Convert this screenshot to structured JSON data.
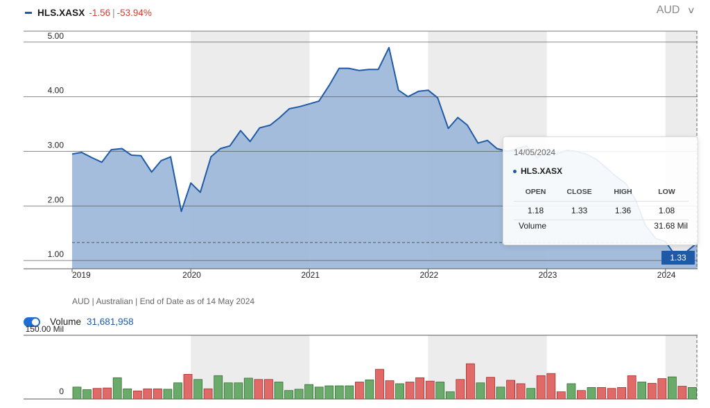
{
  "header": {
    "ticker": "HLS.XASX",
    "change": "-1.56",
    "separator": "|",
    "change_pct": "-53.94%",
    "currency": "AUD",
    "currency_chevron": "∨"
  },
  "footnote": "AUD | Australian | End of Date as of 14 May 2024",
  "volume_toggle": {
    "label": "Volume",
    "value": "31,681,958",
    "on": true
  },
  "tooltip": {
    "date": "14/05/2024",
    "ticker": "HLS.XASX",
    "headers": [
      "OPEN",
      "CLOSE",
      "HIGH",
      "LOW"
    ],
    "values": [
      "1.18",
      "1.33",
      "1.36",
      "1.08"
    ],
    "volume_label": "Volume",
    "volume_value": "31.68 Mil"
  },
  "price_flag": "1.33",
  "colors": {
    "line": "#1f5aa6",
    "area": "#9fb9da",
    "band": "#ececec",
    "up_bar": "#6aaa6a",
    "down_bar": "#e06a68"
  },
  "chart_data": [
    {
      "type": "area",
      "x_ticks": [
        "2019",
        "2020",
        "2021",
        "2022",
        "2023",
        "2024"
      ],
      "x_tick_values": [
        2019.0,
        2020.0,
        2021.0,
        2022.0,
        2023.0,
        2024.0
      ],
      "xlim": [
        2019.0,
        2024.27
      ],
      "y_ticks": [
        "1.00",
        "2.00",
        "3.00",
        "4.00",
        "5.00"
      ],
      "y_tick_values": [
        1.0,
        2.0,
        3.0,
        4.0,
        5.0
      ],
      "ylim": [
        0.85,
        5.2
      ],
      "reference_line": 1.33,
      "grid": true,
      "series": [
        {
          "x": [
            2019.0,
            2019.08,
            2019.17,
            2019.25,
            2019.33,
            2019.42,
            2019.5,
            2019.58,
            2019.67,
            2019.75,
            2019.83,
            2019.92,
            2020.0,
            2020.08,
            2020.17,
            2020.25,
            2020.33,
            2020.42,
            2020.5,
            2020.58,
            2020.67,
            2020.75,
            2020.83,
            2020.92,
            2021.0,
            2021.08,
            2021.17,
            2021.25,
            2021.33,
            2021.42,
            2021.5,
            2021.58,
            2021.67,
            2021.75,
            2021.83,
            2021.92,
            2022.0,
            2022.08,
            2022.17,
            2022.25,
            2022.33,
            2022.42,
            2022.5,
            2022.58,
            2022.67,
            2022.75,
            2022.83,
            2022.92,
            2023.0,
            2023.08,
            2023.17,
            2023.25,
            2023.33,
            2023.42,
            2023.5,
            2023.58,
            2023.67,
            2023.75,
            2023.83,
            2023.92,
            2024.0,
            2024.08,
            2024.17,
            2024.27
          ],
          "values": [
            2.95,
            2.98,
            2.88,
            2.8,
            3.03,
            3.05,
            2.93,
            2.92,
            2.62,
            2.83,
            2.9,
            1.9,
            2.42,
            2.25,
            2.9,
            3.05,
            3.1,
            3.38,
            3.18,
            3.43,
            3.48,
            3.62,
            3.78,
            3.82,
            3.87,
            3.92,
            4.22,
            4.52,
            4.52,
            4.48,
            4.5,
            4.5,
            4.9,
            4.12,
            4.0,
            4.1,
            4.12,
            3.98,
            3.42,
            3.62,
            3.48,
            3.15,
            3.2,
            3.05,
            3.0,
            3.05,
            3.1,
            2.88,
            3.0,
            2.95,
            3.02,
            3.0,
            2.95,
            2.85,
            2.7,
            2.55,
            2.4,
            2.1,
            1.65,
            1.4,
            1.35,
            1.1,
            1.15,
            1.33
          ]
        }
      ]
    },
    {
      "type": "bar",
      "y_ticks": [
        "150.00 Mil",
        "0"
      ],
      "y_tick_values": [
        150,
        0
      ],
      "ylim": [
        0,
        150
      ],
      "series": [
        {
          "values": [
            28,
            22,
            25,
            26,
            50,
            24,
            19,
            24,
            24,
            23,
            38,
            58,
            46,
            24,
            55,
            38,
            38,
            49,
            46,
            46,
            40,
            20,
            23,
            34,
            28,
            31,
            31,
            31,
            40,
            45,
            70,
            43,
            36,
            40,
            50,
            42,
            40,
            17,
            46,
            83,
            38,
            51,
            28,
            44,
            36,
            25,
            55,
            60,
            17,
            36,
            20,
            27,
            27,
            25,
            27,
            55,
            40,
            37,
            48,
            52,
            30,
            27
          ],
          "directions": [
            "up",
            "up",
            "down",
            "down",
            "up",
            "up",
            "down",
            "down",
            "down",
            "up",
            "up",
            "down",
            "up",
            "down",
            "up",
            "up",
            "up",
            "up",
            "down",
            "down",
            "up",
            "up",
            "up",
            "up",
            "up",
            "up",
            "up",
            "up",
            "down",
            "up",
            "down",
            "down",
            "up",
            "down",
            "down",
            "down",
            "up",
            "up",
            "down",
            "down",
            "up",
            "down",
            "up",
            "down",
            "down",
            "up",
            "down",
            "down",
            "down",
            "up",
            "down",
            "up",
            "down",
            "down",
            "down",
            "down",
            "up",
            "down",
            "down",
            "up",
            "down",
            "up"
          ]
        }
      ]
    }
  ]
}
